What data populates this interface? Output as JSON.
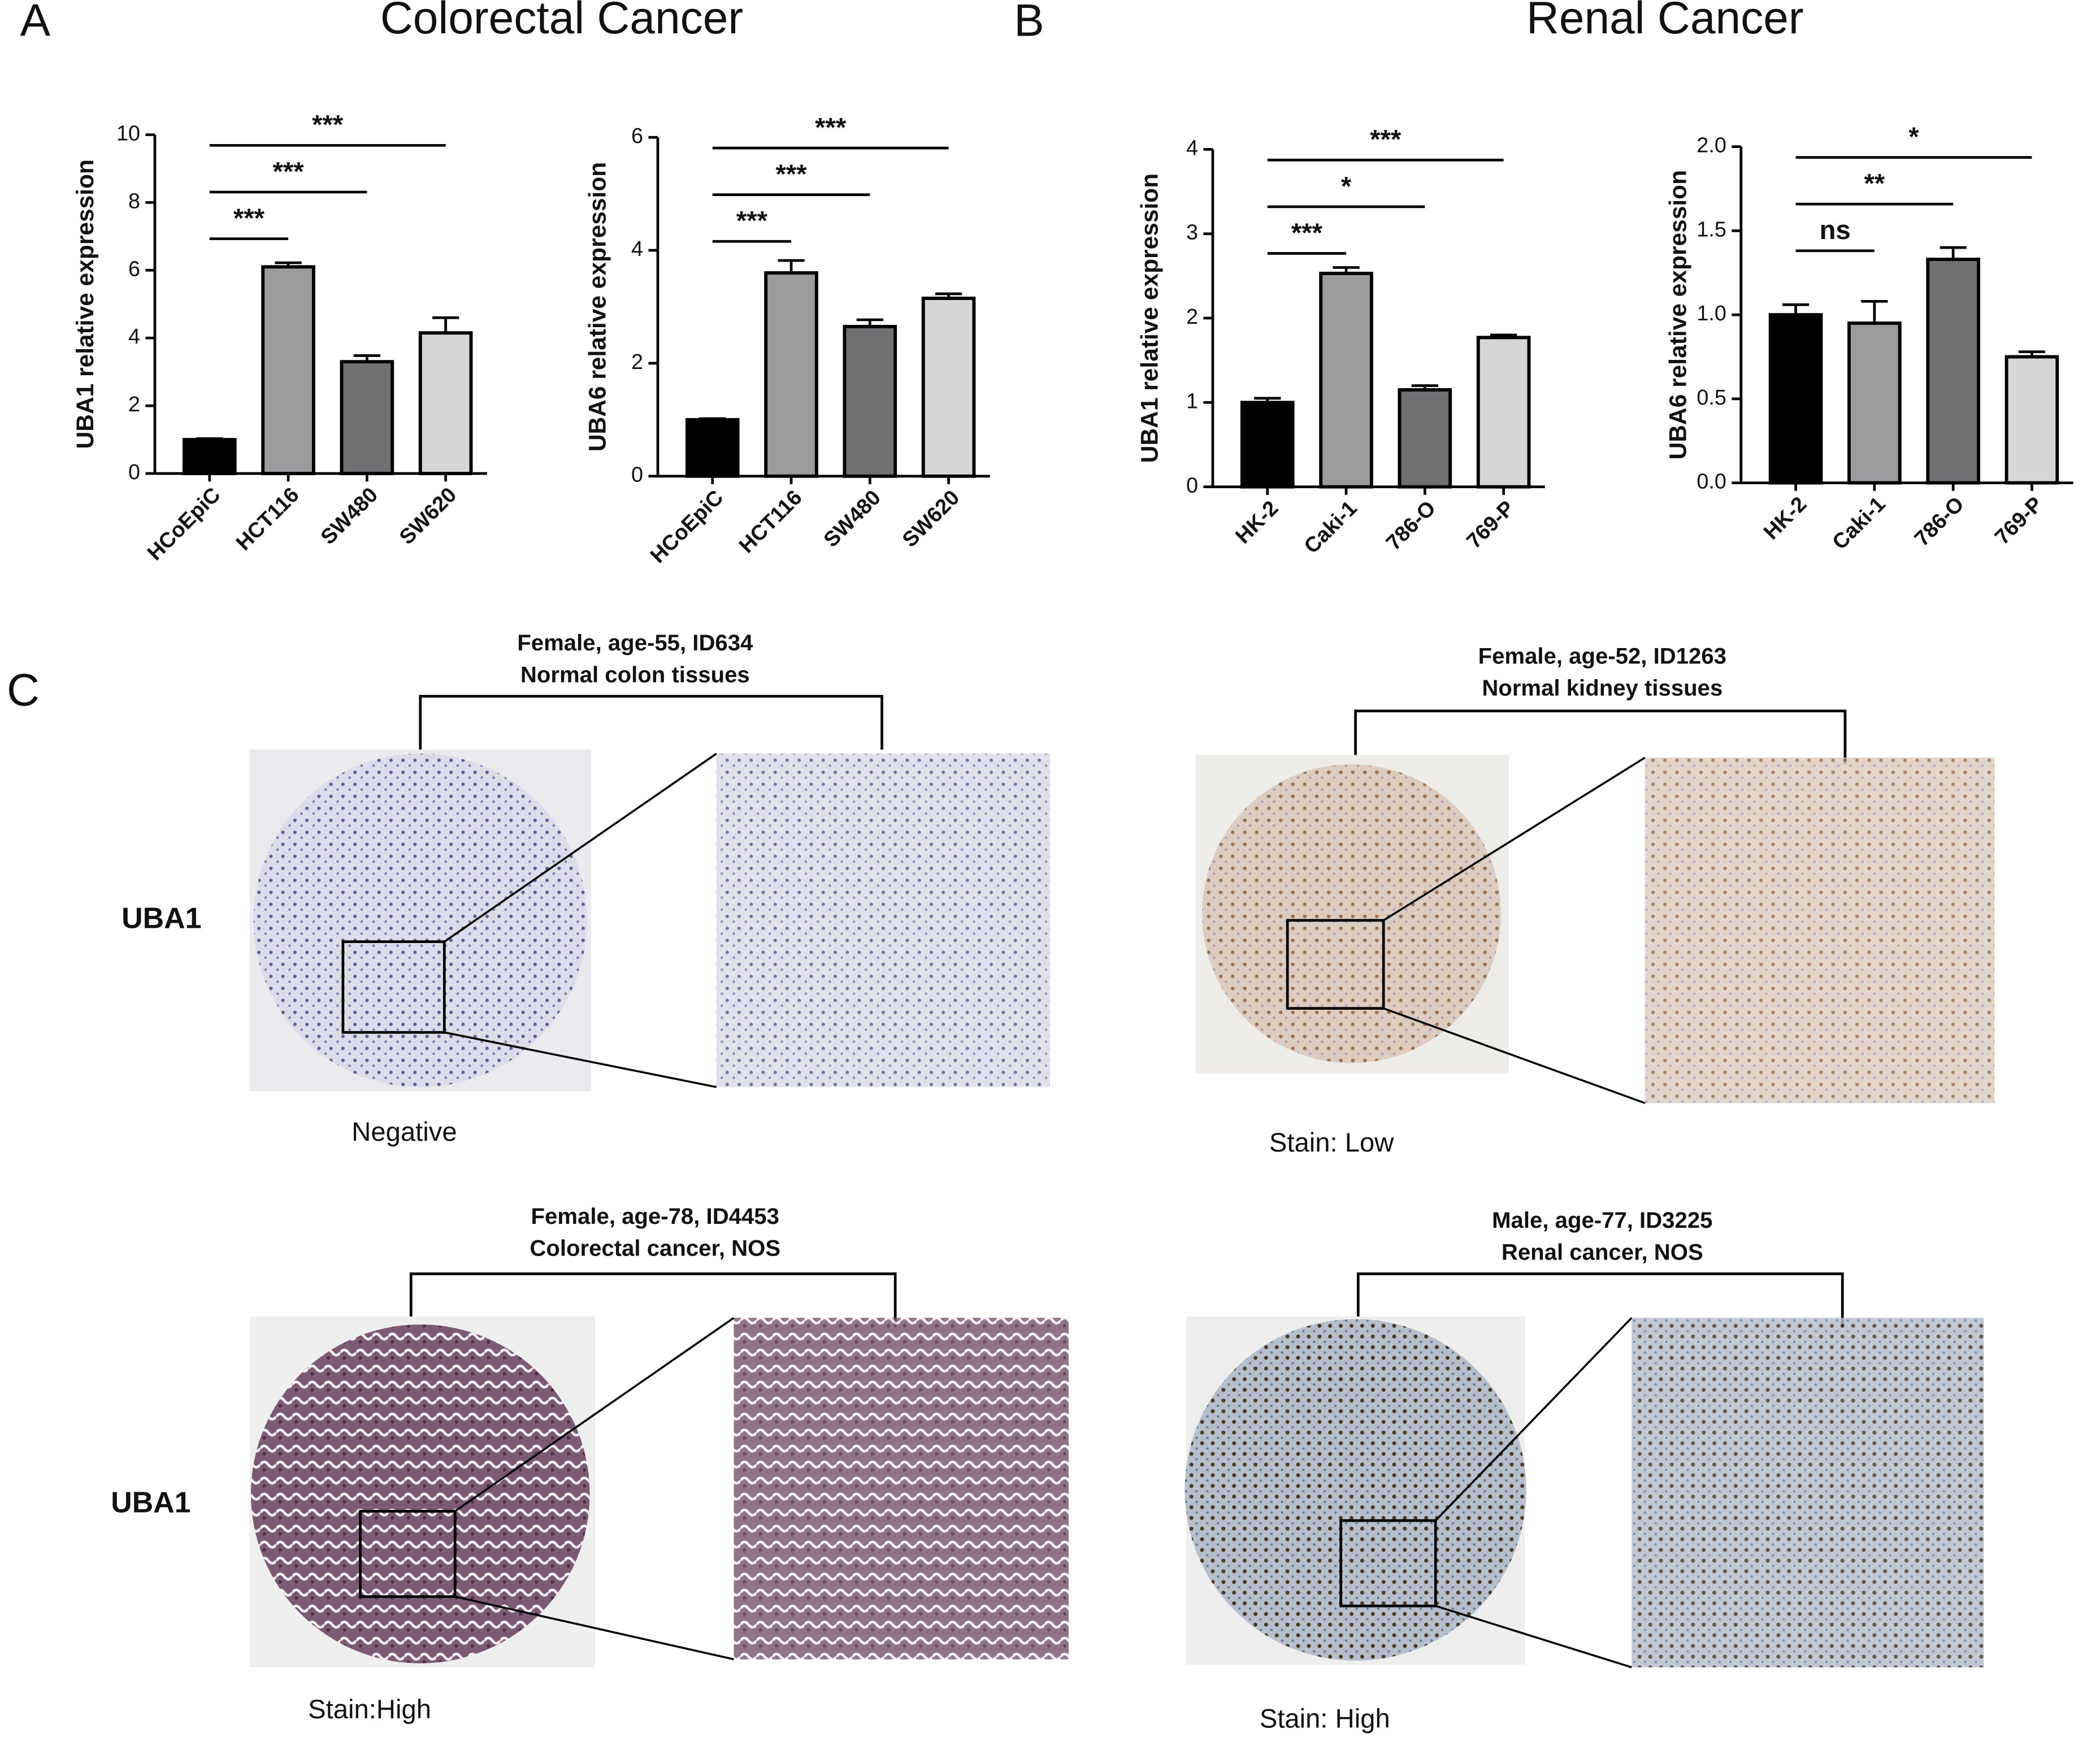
{
  "panels": {
    "a": {
      "label": "A",
      "title": "Colorectal Cancer"
    },
    "b": {
      "label": "B",
      "title": "Renal Cancer"
    },
    "c": {
      "label": "C"
    }
  },
  "chart_data": [
    {
      "type": "bar",
      "ylabel": "UBA1 relative expression",
      "categories": [
        "HCoEpiC",
        "HCT116",
        "SW480",
        "SW620"
      ],
      "values": [
        1,
        6.1,
        3.3,
        4.15
      ],
      "errors": [
        0.03,
        0.12,
        0.18,
        0.45
      ],
      "colors": [
        "#000000",
        "#9b9b9e",
        "#707072",
        "#d5d7d7"
      ],
      "ylim": [
        0,
        10
      ],
      "yticks": [
        0,
        2,
        4,
        6,
        8,
        10
      ],
      "annotations": [
        {
          "start": 0,
          "end": 1,
          "label": "***"
        },
        {
          "start": 0,
          "end": 2,
          "label": "***"
        },
        {
          "start": 0,
          "end": 3,
          "label": "***"
        }
      ]
    },
    {
      "type": "bar",
      "ylabel": "UBA6 relative expression",
      "categories": [
        "HCoEpiC",
        "HCT116",
        "SW480",
        "SW620"
      ],
      "values": [
        1,
        3.6,
        2.65,
        3.15
      ],
      "errors": [
        0.02,
        0.22,
        0.12,
        0.08
      ],
      "colors": [
        "#000000",
        "#9b9b9e",
        "#707072",
        "#d5d7d7"
      ],
      "ylim": [
        0,
        6
      ],
      "yticks": [
        0,
        2,
        4,
        6
      ],
      "annotations": [
        {
          "start": 0,
          "end": 1,
          "label": "***"
        },
        {
          "start": 0,
          "end": 2,
          "label": "***"
        },
        {
          "start": 0,
          "end": 3,
          "label": "***"
        }
      ]
    },
    {
      "type": "bar",
      "ylabel": "UBA1 relative expression",
      "categories": [
        "HK-2",
        "Caki-1",
        "786-O",
        "769-P"
      ],
      "values": [
        1,
        2.53,
        1.15,
        1.77
      ],
      "errors": [
        0.05,
        0.07,
        0.05,
        0.03
      ],
      "colors": [
        "#000000",
        "#9b9b9e",
        "#707072",
        "#d5d7d7"
      ],
      "ylim": [
        0,
        4
      ],
      "yticks": [
        0,
        1,
        2,
        3,
        4
      ],
      "annotations": [
        {
          "start": 0,
          "end": 1,
          "label": "***"
        },
        {
          "start": 0,
          "end": 2,
          "label": "*"
        },
        {
          "start": 0,
          "end": 3,
          "label": "***"
        }
      ]
    },
    {
      "type": "bar",
      "ylabel": "UBA6 relative expression",
      "categories": [
        "HK-2",
        "Caki-1",
        "786-O",
        "769-P"
      ],
      "values": [
        1,
        0.95,
        1.33,
        0.75
      ],
      "errors": [
        0.06,
        0.13,
        0.07,
        0.03
      ],
      "colors": [
        "#000000",
        "#9b9b9e",
        "#707072",
        "#d5d7d7"
      ],
      "ylim": [
        0,
        2
      ],
      "yticks": [
        {
          "value": 0,
          "label": "0.0"
        },
        {
          "value": 0.5,
          "label": "0.5"
        },
        {
          "value": 1,
          "label": "1.0"
        },
        {
          "value": 1.5,
          "label": "1.5"
        },
        {
          "value": 2,
          "label": "2.0"
        }
      ],
      "annotations": [
        {
          "start": 0,
          "end": 1,
          "label": "ns"
        },
        {
          "start": 0,
          "end": 2,
          "label": "**"
        },
        {
          "start": 0,
          "end": 3,
          "label": "*"
        }
      ]
    }
  ],
  "tissues": {
    "row_labels": [
      "UBA1",
      "UBA1"
    ],
    "samples": [
      {
        "title": "Female, age-55, ID634",
        "subtitle": "Normal colon tissues",
        "stain": "Negative"
      },
      {
        "title": "Female, age-52, ID1263",
        "subtitle": "Normal kidney tissues",
        "stain": "Stain: Low"
      },
      {
        "title": "Female, age-78, ID4453",
        "subtitle": "Colorectal cancer, NOS",
        "stain": "Stain:High"
      },
      {
        "title": "Male, age-77, ID3225",
        "subtitle": "Renal cancer, NOS",
        "stain": "Stain: High"
      }
    ]
  }
}
